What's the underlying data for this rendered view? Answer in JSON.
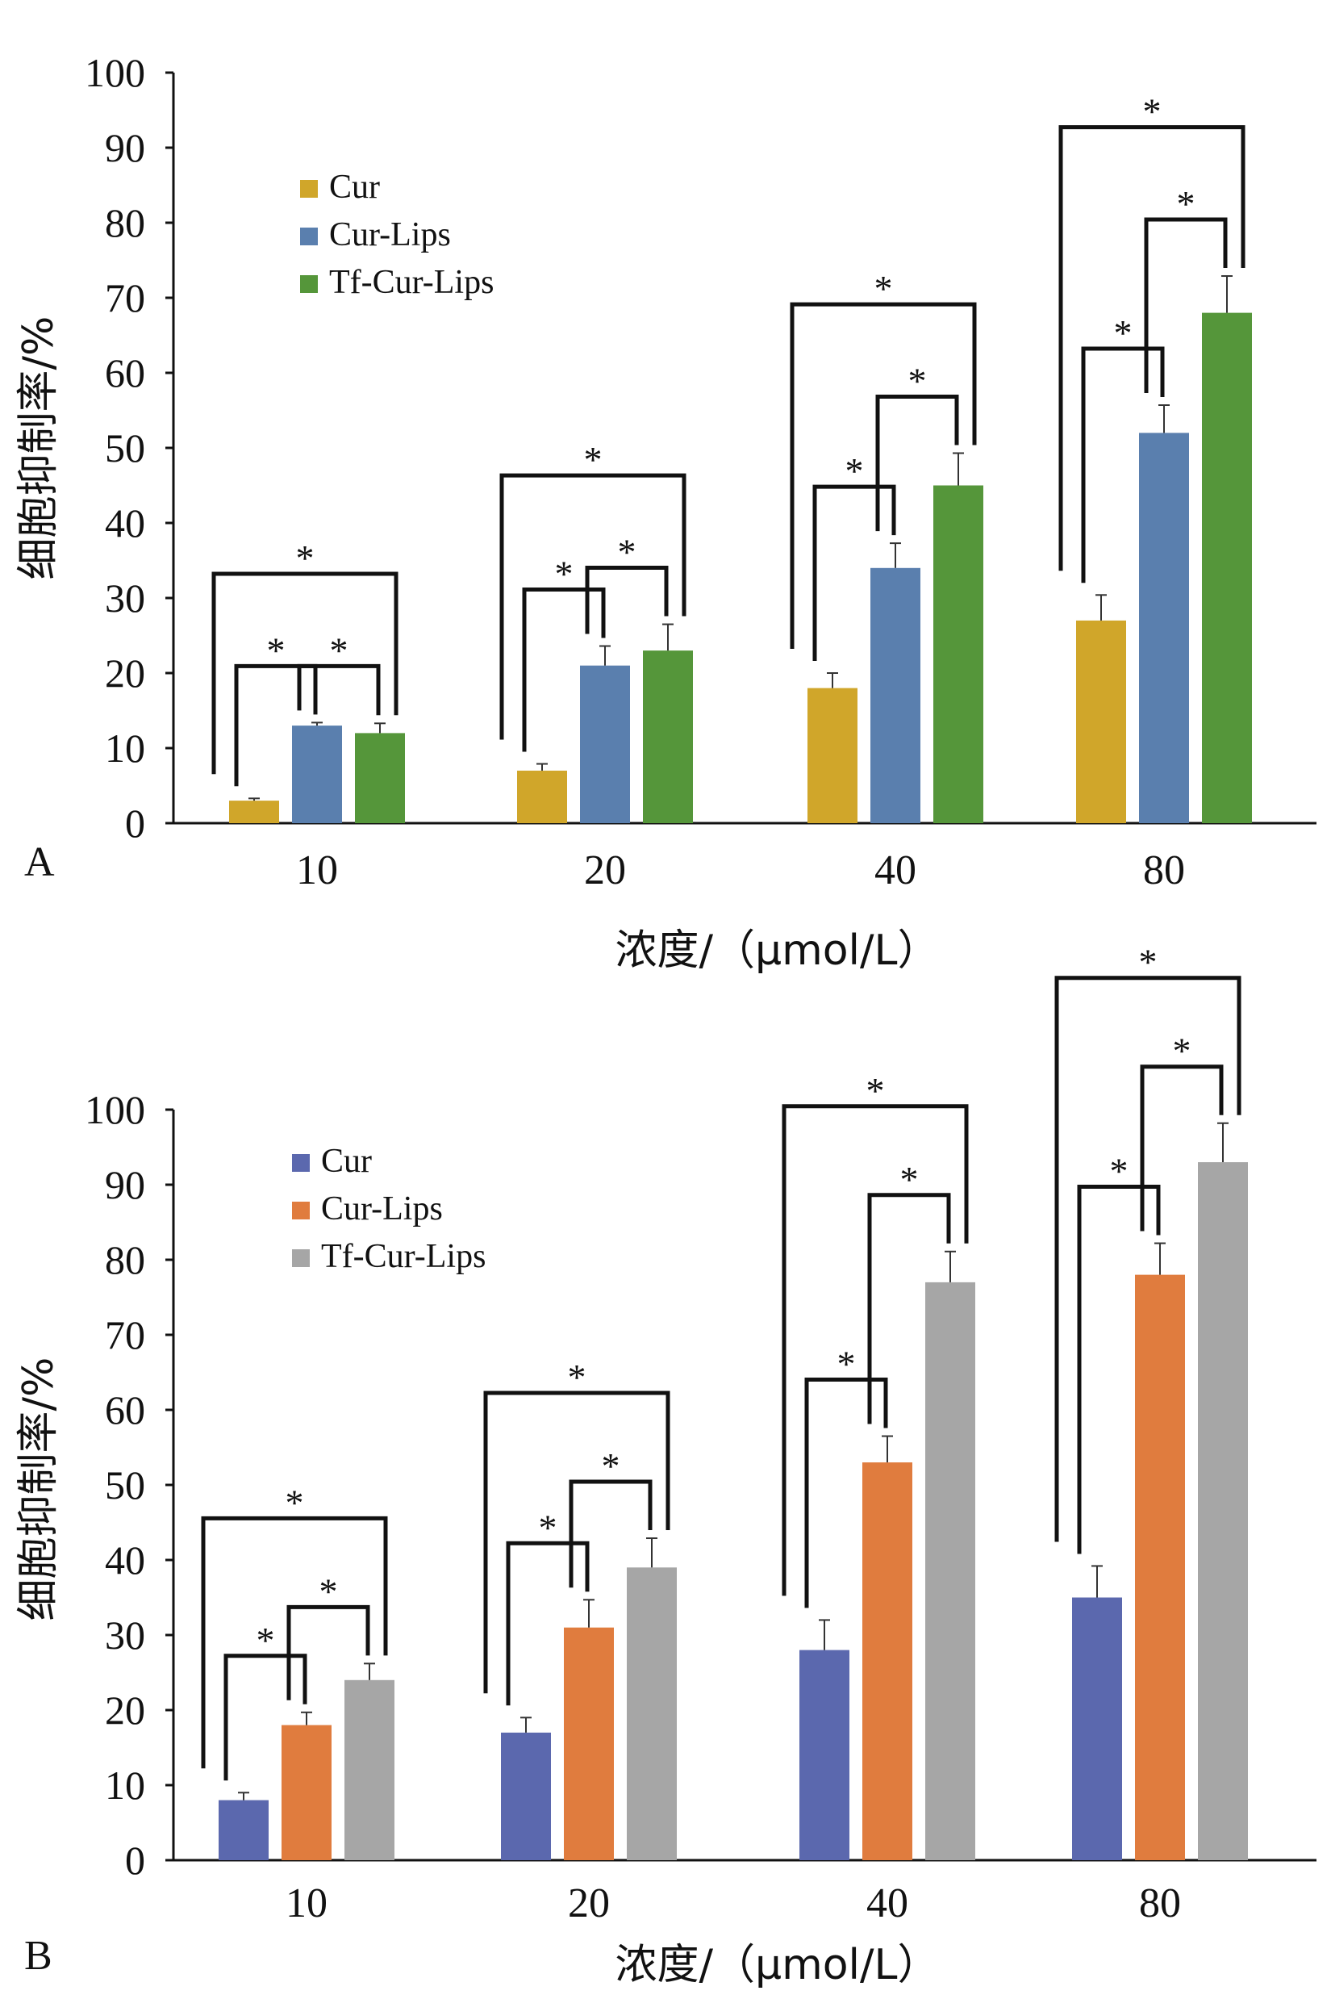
{
  "chart_data": [
    {
      "panel_label": "A",
      "type": "bar",
      "ylabel": "细胞抑制率/%",
      "xlabel": "浓度/（μmol/L）",
      "ylim": [
        0,
        100
      ],
      "yticks": [
        "0",
        "10",
        "20",
        "30",
        "40",
        "50",
        "60",
        "70",
        "80",
        "90",
        "100"
      ],
      "categories": [
        "10",
        "20",
        "40",
        "80"
      ],
      "legend_position": "top-left",
      "series": [
        {
          "name": "Cur",
          "color": "#d0a62a",
          "values": [
            3,
            7,
            18,
            27
          ],
          "errors": [
            0.3,
            0.9,
            2.0,
            3.4
          ]
        },
        {
          "name": "Cur-Lips",
          "color": "#5a7fae",
          "values": [
            13,
            21,
            34,
            52
          ],
          "errors": [
            0.4,
            2.6,
            3.3,
            3.7
          ]
        },
        {
          "name": "Tf-Cur-Lips",
          "color": "#55963a",
          "values": [
            12,
            23,
            45,
            68
          ],
          "errors": [
            1.3,
            3.5,
            4.3,
            4.9
          ]
        }
      ],
      "significance_mark": "*"
    },
    {
      "panel_label": "B",
      "type": "bar",
      "ylabel": "细胞抑制率/%",
      "xlabel": "浓度/（μmol/L）",
      "ylim": [
        0,
        100
      ],
      "yticks": [
        "0",
        "10",
        "20",
        "30",
        "40",
        "50",
        "60",
        "70",
        "80",
        "90",
        "100"
      ],
      "categories": [
        "10",
        "20",
        "40",
        "80"
      ],
      "legend_position": "top-left",
      "series": [
        {
          "name": "Cur",
          "color": "#5b68ae",
          "values": [
            8,
            17,
            28,
            35
          ],
          "errors": [
            1.0,
            2.0,
            4.0,
            4.2
          ]
        },
        {
          "name": "Cur-Lips",
          "color": "#e07c3e",
          "values": [
            18,
            31,
            53,
            78
          ],
          "errors": [
            1.7,
            3.7,
            3.5,
            4.2
          ]
        },
        {
          "name": "Tf-Cur-Lips",
          "color": "#a6a6a6",
          "values": [
            24,
            39,
            77,
            93
          ],
          "errors": [
            2.2,
            3.9,
            4.1,
            5.2
          ]
        }
      ],
      "significance_mark": "*"
    }
  ]
}
